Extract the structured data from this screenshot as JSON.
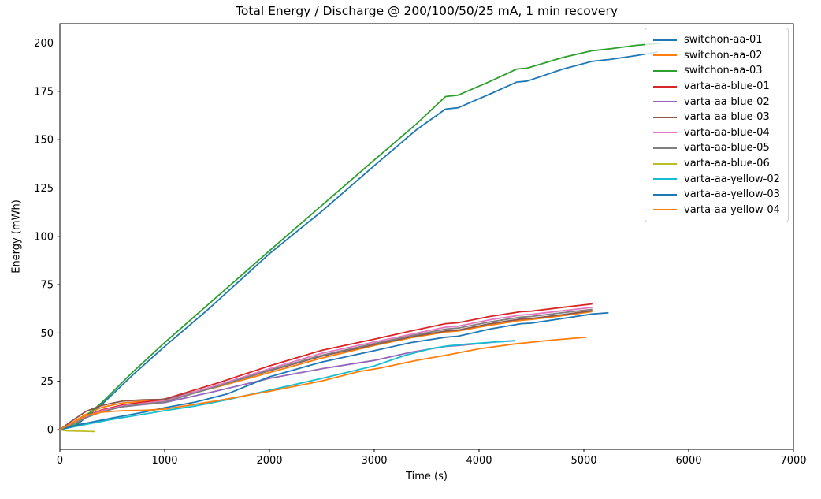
{
  "chart_data": {
    "type": "line",
    "title": "Total Energy / Discharge @ 200/100/50/25 mA, 1 min recovery",
    "xlabel": "Time (s)",
    "ylabel": "Energy (mWh)",
    "xlim": [
      0,
      7000
    ],
    "ylim": [
      -10.2,
      210
    ],
    "xticks": [
      0,
      1000,
      2000,
      3000,
      4000,
      5000,
      6000,
      7000
    ],
    "yticks": [
      0,
      25,
      50,
      75,
      100,
      125,
      150,
      175,
      200
    ],
    "grid": false,
    "legend_position": "upper right",
    "axis_color": "#000000",
    "series": [
      {
        "name": "switchon-aa-01",
        "color": "#1f77b4",
        "points": [
          [
            0,
            0
          ],
          [
            150,
            2
          ],
          [
            400,
            13
          ],
          [
            700,
            28.5
          ],
          [
            1000,
            43
          ],
          [
            1400,
            61.5
          ],
          [
            2000,
            91
          ],
          [
            2500,
            113
          ],
          [
            3000,
            136.5
          ],
          [
            3400,
            155
          ],
          [
            3680,
            165.8
          ],
          [
            3800,
            166.5
          ],
          [
            4100,
            173.5
          ],
          [
            4360,
            179.8
          ],
          [
            4460,
            180.3
          ],
          [
            4800,
            186.5
          ],
          [
            5080,
            190.5
          ],
          [
            5250,
            191.5
          ],
          [
            5500,
            193.5
          ],
          [
            5700,
            195.3
          ]
        ]
      },
      {
        "name": "switchon-aa-02",
        "color": "#ff7f0e",
        "points": [
          [
            0,
            0
          ],
          [
            100,
            3
          ],
          [
            250,
            8
          ],
          [
            400,
            11.5
          ],
          [
            600,
            13.8
          ],
          [
            800,
            14.7
          ],
          [
            1000,
            15.2
          ],
          [
            1500,
            22
          ],
          [
            2000,
            29.5
          ],
          [
            2500,
            37
          ],
          [
            3000,
            43.5
          ],
          [
            3350,
            47.5
          ],
          [
            3680,
            50.5
          ],
          [
            3800,
            51
          ],
          [
            4100,
            54
          ],
          [
            4400,
            56.5
          ],
          [
            4500,
            57
          ],
          [
            4800,
            59
          ],
          [
            5075,
            61
          ]
        ]
      },
      {
        "name": "switchon-aa-03",
        "color": "#2ca02c",
        "points": [
          [
            0,
            0
          ],
          [
            150,
            2.5
          ],
          [
            400,
            14
          ],
          [
            700,
            30
          ],
          [
            1000,
            45
          ],
          [
            1400,
            64
          ],
          [
            2000,
            92.5
          ],
          [
            2500,
            116
          ],
          [
            3000,
            139.5
          ],
          [
            3400,
            158
          ],
          [
            3680,
            172.3
          ],
          [
            3800,
            173
          ],
          [
            4100,
            180
          ],
          [
            4360,
            186.5
          ],
          [
            4460,
            187
          ],
          [
            4800,
            192.5
          ],
          [
            5080,
            196
          ],
          [
            5250,
            197
          ],
          [
            5500,
            198.8
          ],
          [
            5750,
            200
          ]
        ]
      },
      {
        "name": "varta-aa-blue-01",
        "color": "#d62728",
        "points": [
          [
            0,
            0
          ],
          [
            100,
            2.5
          ],
          [
            250,
            7
          ],
          [
            400,
            10.2
          ],
          [
            600,
            12.8
          ],
          [
            800,
            14.2
          ],
          [
            1000,
            15.8
          ],
          [
            1500,
            24
          ],
          [
            2000,
            33
          ],
          [
            2500,
            41
          ],
          [
            3000,
            46.8
          ],
          [
            3350,
            51
          ],
          [
            3680,
            54.8
          ],
          [
            3800,
            55.3
          ],
          [
            4100,
            58.5
          ],
          [
            4400,
            61
          ],
          [
            4500,
            61.3
          ],
          [
            4800,
            63.3
          ],
          [
            5075,
            65
          ]
        ]
      },
      {
        "name": "varta-aa-blue-02",
        "color": "#9467bd",
        "points": [
          [
            0,
            0
          ],
          [
            100,
            2.2
          ],
          [
            250,
            6.5
          ],
          [
            400,
            9.5
          ],
          [
            600,
            11.8
          ],
          [
            800,
            13
          ],
          [
            1000,
            14
          ],
          [
            1500,
            20
          ],
          [
            2000,
            26.5
          ],
          [
            2500,
            31.5
          ],
          [
            3000,
            35.8
          ],
          [
            3350,
            40
          ],
          [
            3680,
            43
          ],
          [
            3800,
            43.5
          ],
          [
            4000,
            44.5
          ],
          [
            4150,
            45.3
          ],
          [
            4340,
            46
          ]
        ]
      },
      {
        "name": "varta-aa-blue-03",
        "color": "#8c564b",
        "points": [
          [
            0,
            0
          ],
          [
            100,
            4
          ],
          [
            250,
            9.5
          ],
          [
            400,
            12.5
          ],
          [
            600,
            14.8
          ],
          [
            800,
            15.4
          ],
          [
            1000,
            15.6
          ],
          [
            1500,
            22.5
          ],
          [
            2000,
            30.5
          ],
          [
            2500,
            38
          ],
          [
            3000,
            44
          ],
          [
            3350,
            48
          ],
          [
            3680,
            51
          ],
          [
            3800,
            51.5
          ],
          [
            4100,
            54.7
          ],
          [
            4400,
            57.2
          ],
          [
            4500,
            57.5
          ],
          [
            4800,
            59.5
          ],
          [
            5075,
            61.5
          ]
        ]
      },
      {
        "name": "varta-aa-blue-04",
        "color": "#e377c2",
        "points": [
          [
            0,
            0
          ],
          [
            100,
            2.3
          ],
          [
            250,
            6.8
          ],
          [
            400,
            9.8
          ],
          [
            600,
            12.3
          ],
          [
            800,
            13.6
          ],
          [
            1000,
            14.8
          ],
          [
            1500,
            23
          ],
          [
            2000,
            31.5
          ],
          [
            2500,
            39.5
          ],
          [
            3000,
            45.3
          ],
          [
            3350,
            49.3
          ],
          [
            3680,
            53
          ],
          [
            3800,
            53.5
          ],
          [
            4100,
            56.8
          ],
          [
            4400,
            59.3
          ],
          [
            4500,
            59.6
          ],
          [
            4800,
            61.5
          ],
          [
            5075,
            63.2
          ]
        ]
      },
      {
        "name": "varta-aa-blue-05",
        "color": "#7f7f7f",
        "points": [
          [
            0,
            0
          ],
          [
            100,
            2.1
          ],
          [
            250,
            6.2
          ],
          [
            400,
            9.2
          ],
          [
            600,
            11.9
          ],
          [
            800,
            13.2
          ],
          [
            1000,
            14.3
          ],
          [
            1500,
            22.3
          ],
          [
            2000,
            30.8
          ],
          [
            2500,
            38.5
          ],
          [
            3000,
            44.5
          ],
          [
            3350,
            48.5
          ],
          [
            3680,
            52
          ],
          [
            3800,
            52.5
          ],
          [
            4100,
            55.7
          ],
          [
            4400,
            58.2
          ],
          [
            4500,
            58.5
          ],
          [
            4800,
            60.5
          ],
          [
            5075,
            62.2
          ]
        ]
      },
      {
        "name": "varta-aa-blue-06",
        "color": "#bcbd22",
        "points": [
          [
            0,
            0
          ],
          [
            60,
            -0.6
          ],
          [
            330,
            -1
          ]
        ]
      },
      {
        "name": "varta-aa-yellow-02",
        "color": "#17becf",
        "points": [
          [
            0,
            0
          ],
          [
            200,
            2.2
          ],
          [
            500,
            5.3
          ],
          [
            800,
            8
          ],
          [
            1000,
            9.8
          ],
          [
            1300,
            12.3
          ],
          [
            1600,
            15.5
          ],
          [
            2000,
            20.4
          ],
          [
            2500,
            26.5
          ],
          [
            3000,
            33
          ],
          [
            3300,
            38.5
          ],
          [
            3550,
            42
          ],
          [
            3700,
            43.3
          ],
          [
            3900,
            44.3
          ],
          [
            4150,
            45.3
          ],
          [
            4340,
            46
          ]
        ]
      },
      {
        "name": "varta-aa-yellow-03",
        "color": "#1f77b4",
        "points": [
          [
            0,
            0
          ],
          [
            200,
            2.8
          ],
          [
            500,
            6
          ],
          [
            800,
            9
          ],
          [
            1000,
            11.3
          ],
          [
            1300,
            14.3
          ],
          [
            1600,
            18.5
          ],
          [
            2000,
            27.3
          ],
          [
            2500,
            35
          ],
          [
            3000,
            40.8
          ],
          [
            3350,
            45
          ],
          [
            3680,
            47.8
          ],
          [
            3800,
            48.3
          ],
          [
            4100,
            52
          ],
          [
            4400,
            54.8
          ],
          [
            4500,
            55.1
          ],
          [
            4800,
            57.5
          ],
          [
            5080,
            59.8
          ],
          [
            5230,
            60.4
          ]
        ]
      },
      {
        "name": "varta-aa-yellow-04",
        "color": "#ff7f0e",
        "points": [
          [
            0,
            0
          ],
          [
            100,
            3
          ],
          [
            250,
            7.3
          ],
          [
            400,
            9
          ],
          [
            600,
            9.8
          ],
          [
            800,
            10
          ],
          [
            1000,
            10.6
          ],
          [
            1500,
            14.9
          ],
          [
            2000,
            19.8
          ],
          [
            2500,
            25.2
          ],
          [
            2850,
            30
          ],
          [
            3050,
            31.8
          ],
          [
            3400,
            35.8
          ],
          [
            3700,
            38.6
          ],
          [
            4000,
            41.8
          ],
          [
            4340,
            44.3
          ],
          [
            4700,
            46.3
          ],
          [
            5020,
            47.8
          ]
        ]
      }
    ]
  }
}
